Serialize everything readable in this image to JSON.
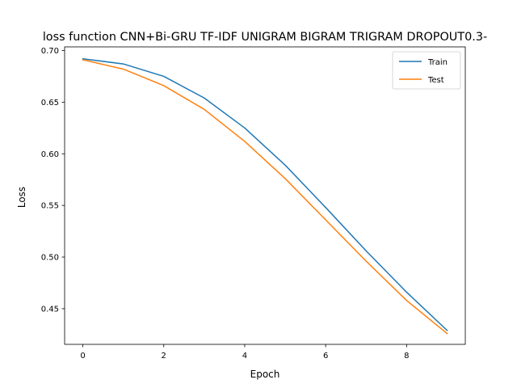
{
  "chart_data": {
    "type": "line",
    "title": "loss function CNN+Bi-GRU TF-IDF UNIGRAM BIGRAM TRIGRAM DROPOUT0.3-",
    "xlabel": "Epoch",
    "ylabel": "Loss",
    "xlim": [
      -0.45,
      9.45
    ],
    "ylim": [
      0.4155,
      0.7035
    ],
    "xticks": [
      0,
      2,
      4,
      6,
      8
    ],
    "xtick_labels": [
      "0",
      "2",
      "4",
      "6",
      "8"
    ],
    "yticks": [
      0.45,
      0.5,
      0.55,
      0.6,
      0.65,
      0.7
    ],
    "ytick_labels": [
      "0.45",
      "0.50",
      "0.55",
      "0.60",
      "0.65",
      "0.70"
    ],
    "grid": false,
    "legend_position": "top-right",
    "x": [
      0,
      1,
      2,
      3,
      4,
      5,
      6,
      7,
      8,
      9
    ],
    "series": [
      {
        "name": "Train",
        "color": "#1f77b4",
        "values": [
          0.692,
          0.687,
          0.675,
          0.654,
          0.625,
          0.589,
          0.548,
          0.506,
          0.466,
          0.429
        ]
      },
      {
        "name": "Test",
        "color": "#ff7f0e",
        "values": [
          0.691,
          0.682,
          0.666,
          0.643,
          0.612,
          0.576,
          0.536,
          0.496,
          0.458,
          0.426
        ]
      }
    ]
  }
}
